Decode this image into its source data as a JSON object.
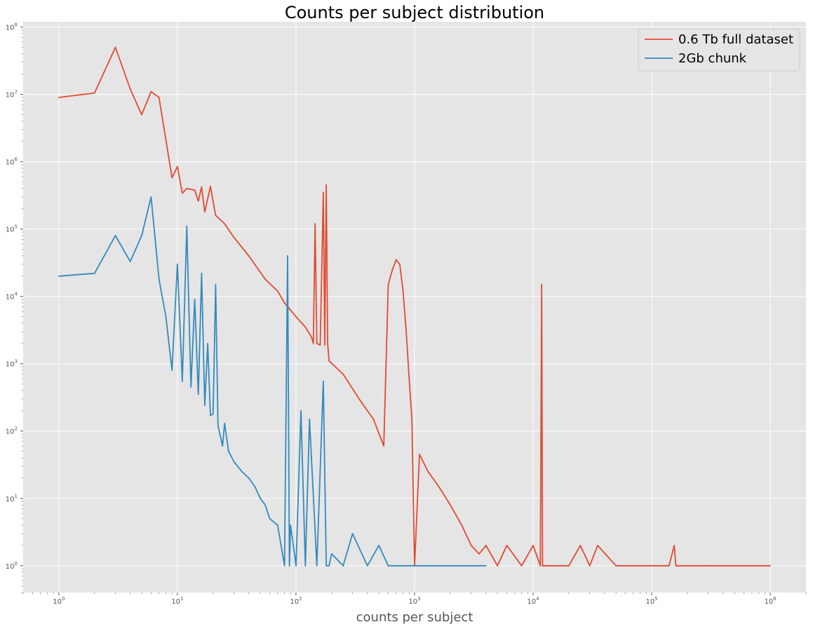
{
  "chart_data": {
    "type": "line",
    "title": "Counts per subject distribution",
    "xlabel": "counts per subject",
    "ylabel": "",
    "xscale": "log",
    "yscale": "log",
    "xlim": [
      0.5,
      2000000
    ],
    "ylim": [
      0.4,
      120000000
    ],
    "grid": true,
    "legend_position": "top-right",
    "x_ticks": [
      {
        "base": "10",
        "exp": "0",
        "value": 1
      },
      {
        "base": "10",
        "exp": "1",
        "value": 10
      },
      {
        "base": "10",
        "exp": "2",
        "value": 100
      },
      {
        "base": "10",
        "exp": "3",
        "value": 1000
      },
      {
        "base": "10",
        "exp": "4",
        "value": 10000
      },
      {
        "base": "10",
        "exp": "5",
        "value": 100000
      },
      {
        "base": "10",
        "exp": "6",
        "value": 1000000
      }
    ],
    "y_ticks": [
      {
        "base": "10",
        "exp": "0",
        "value": 1
      },
      {
        "base": "10",
        "exp": "1",
        "value": 10
      },
      {
        "base": "10",
        "exp": "2",
        "value": 100
      },
      {
        "base": "10",
        "exp": "3",
        "value": 1000
      },
      {
        "base": "10",
        "exp": "4",
        "value": 10000
      },
      {
        "base": "10",
        "exp": "5",
        "value": 100000
      },
      {
        "base": "10",
        "exp": "6",
        "value": 1000000
      },
      {
        "base": "10",
        "exp": "7",
        "value": 10000000
      },
      {
        "base": "10",
        "exp": "8",
        "value": 100000000
      }
    ],
    "series": [
      {
        "name": "0.6 Tb full dataset",
        "color": "#E24A33",
        "x": [
          1,
          2,
          3,
          4,
          5,
          6,
          7,
          9,
          10,
          11,
          12,
          14,
          15,
          16,
          17,
          19,
          21,
          25,
          30,
          40,
          55,
          70,
          80,
          100,
          120,
          135,
          140,
          145,
          150,
          160,
          170,
          175,
          180,
          185,
          190,
          250,
          350,
          450,
          550,
          600,
          650,
          700,
          750,
          800,
          850,
          900,
          950,
          1000,
          1100,
          1300,
          1600,
          2000,
          2500,
          3000,
          3500,
          4000,
          5000,
          6000,
          8000,
          10000,
          11500,
          11800,
          12000,
          12200,
          14000,
          20000,
          25000,
          30000,
          35000,
          50000,
          100000,
          140000,
          155000,
          160000,
          300000,
          1000000
        ],
        "y": [
          9000000,
          10500000,
          50000000,
          12000000,
          5000000,
          11000000,
          9000000,
          580000,
          850000,
          340000,
          400000,
          380000,
          260000,
          420000,
          180000,
          430000,
          160000,
          120000,
          75000,
          40000,
          18000,
          12000,
          8000,
          5000,
          3500,
          2500,
          2000,
          120000,
          2000,
          1900,
          350000,
          1900,
          450000,
          2000,
          1100,
          700,
          280,
          150,
          60,
          15000,
          25000,
          35000,
          30000,
          12000,
          3000,
          600,
          150,
          1,
          45,
          25,
          15,
          8,
          4,
          2,
          1.5,
          2,
          1,
          2,
          1,
          2,
          1,
          15000,
          1,
          1,
          1,
          1,
          2,
          1,
          2,
          1,
          1,
          1,
          2,
          1,
          1,
          1
        ]
      },
      {
        "name": "2Gb chunk",
        "color": "#348ABD",
        "x": [
          1,
          2,
          3,
          4,
          5,
          6,
          7,
          8,
          9,
          10,
          11,
          12,
          13,
          14,
          15,
          16,
          17,
          18,
          19,
          20,
          21,
          22,
          24,
          25,
          27,
          30,
          35,
          40,
          45,
          50,
          55,
          60,
          70,
          80,
          85,
          88,
          90,
          95,
          100,
          110,
          120,
          130,
          150,
          170,
          180,
          190,
          200,
          250,
          300,
          400,
          500,
          600,
          700,
          1000,
          2000,
          4000
        ],
        "y": [
          20000,
          22000,
          80000,
          33000,
          80000,
          300000,
          18000,
          5000,
          800,
          30000,
          550,
          110000,
          450,
          9000,
          350,
          22000,
          240,
          2000,
          170,
          180,
          15000,
          120,
          60,
          130,
          50,
          35,
          25,
          20,
          15,
          10,
          8,
          5,
          4,
          1,
          40000,
          1,
          4,
          2,
          1,
          200,
          1,
          150,
          1,
          550,
          1,
          1,
          1.5,
          1,
          3,
          1,
          2,
          1,
          1,
          1,
          1,
          1
        ]
      }
    ]
  }
}
